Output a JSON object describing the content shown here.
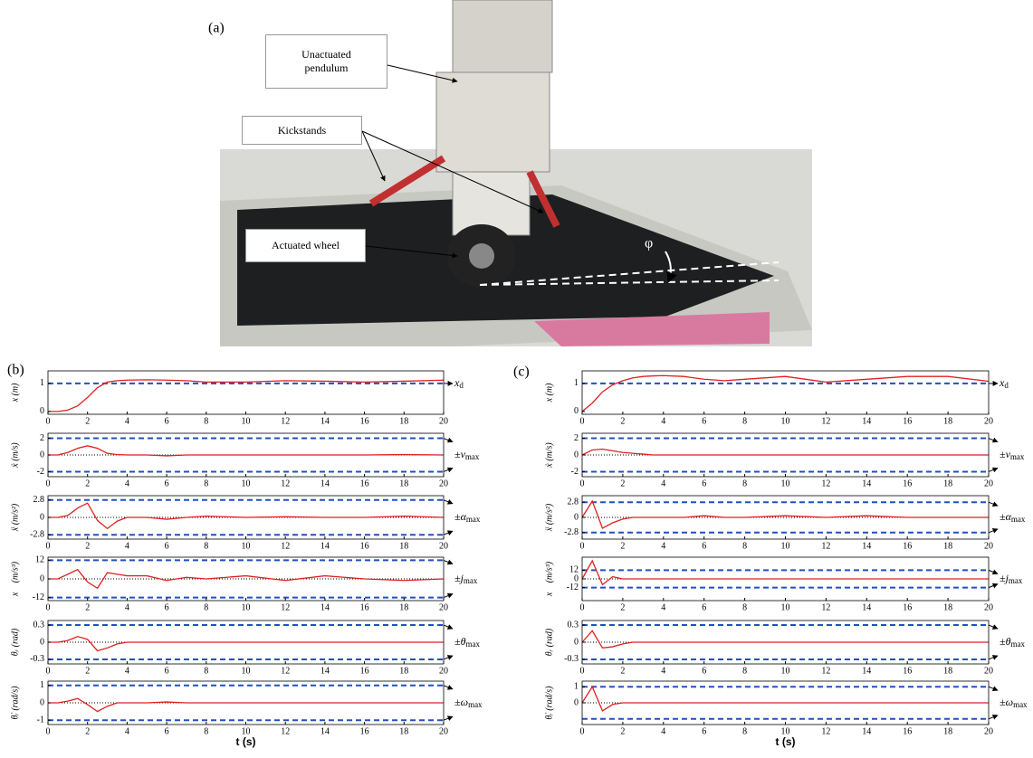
{
  "figure_labels": {
    "a": "(a)",
    "b": "(b)",
    "c": "(c)"
  },
  "photo": {
    "labels": [
      "Unactuated pendulum",
      "Kickstands",
      "Actuated wheel"
    ],
    "angle": "φ"
  },
  "chart_data": [
    {
      "type": "line",
      "ylabel": "x (m)",
      "annotation": "x",
      "annotation_sub": "d",
      "x": [
        0,
        0.5,
        1,
        1.5,
        2,
        2.5,
        3,
        3.5,
        4,
        5,
        6,
        7,
        8,
        10,
        12,
        14,
        16,
        18,
        20
      ],
      "series": [
        {
          "color": "#e02020",
          "values": [
            0,
            0,
            0.05,
            0.2,
            0.5,
            0.85,
            1.05,
            1.1,
            1.12,
            1.13,
            1.12,
            1.1,
            1.05,
            1.05,
            1.1,
            1.08,
            1.05,
            1.08,
            1.12
          ]
        }
      ],
      "bounds": [
        1
      ],
      "bound_color": "#2050c0",
      "zero_line": false,
      "xlim": [
        0,
        20
      ],
      "ylim": [
        -0.1,
        1.45
      ],
      "xticks": [
        0,
        2,
        4,
        6,
        8,
        10,
        12,
        14,
        16,
        18,
        20
      ],
      "yticks": [
        0,
        1
      ]
    },
    {
      "type": "line",
      "ylabel": "ẋ (m/s)",
      "annotation": "±v",
      "annotation_sub": "max",
      "x": [
        0,
        0.5,
        1,
        1.5,
        2,
        2.5,
        3,
        3.5,
        4,
        5,
        6,
        7,
        8,
        10,
        12,
        14,
        16,
        18,
        20
      ],
      "series": [
        {
          "color": "#e02020",
          "values": [
            0,
            0,
            0.3,
            0.8,
            1.1,
            0.8,
            0.2,
            0.05,
            0,
            0,
            -0.1,
            0,
            0,
            0,
            0,
            0,
            0,
            0.05,
            0
          ]
        }
      ],
      "bounds": [
        -2,
        2
      ],
      "bound_color": "#2050c0",
      "zero_line": true,
      "xlim": [
        0,
        20
      ],
      "ylim": [
        -2.6,
        2.6
      ],
      "xticks": [
        0,
        2,
        4,
        6,
        8,
        10,
        12,
        14,
        16,
        18,
        20
      ],
      "yticks": [
        -2,
        0,
        2
      ]
    },
    {
      "type": "line",
      "ylabel": "ẍ (m/s²)",
      "annotation": "±α",
      "annotation_sub": "max",
      "x": [
        0,
        0.5,
        1,
        1.5,
        2,
        2.5,
        3,
        3.5,
        4,
        5,
        6,
        7,
        8,
        10,
        12,
        14,
        16,
        18,
        20
      ],
      "series": [
        {
          "color": "#e02020",
          "values": [
            0,
            0,
            0.3,
            1.5,
            2.3,
            -0.5,
            -1.8,
            -0.6,
            0,
            0,
            -0.3,
            0,
            0.2,
            0,
            0.1,
            0,
            0,
            0.2,
            0
          ]
        }
      ],
      "bounds": [
        -2.8,
        2.8
      ],
      "bound_color": "#2050c0",
      "zero_line": true,
      "xlim": [
        0,
        20
      ],
      "ylim": [
        -3.5,
        3.5
      ],
      "xticks": [
        0,
        2,
        4,
        6,
        8,
        10,
        12,
        14,
        16,
        18,
        20
      ],
      "yticks": [
        -2.8,
        0,
        2.8
      ]
    },
    {
      "type": "line",
      "ylabel": "x⃛ (m/s³)",
      "annotation": "±j",
      "annotation_sub": "max",
      "x": [
        0,
        0.5,
        1,
        1.5,
        2,
        2.5,
        3,
        3.5,
        4,
        5,
        6,
        7,
        8,
        10,
        12,
        14,
        16,
        18,
        20
      ],
      "series": [
        {
          "color": "#e02020",
          "values": [
            0,
            0,
            3,
            6,
            -2,
            -6,
            4,
            3,
            2,
            2,
            -1,
            1,
            0,
            2,
            -1,
            2,
            0,
            -1,
            0
          ]
        }
      ],
      "bounds": [
        -12,
        12
      ],
      "bound_color": "#2050c0",
      "zero_line": true,
      "xlim": [
        0,
        20
      ],
      "ylim": [
        -14,
        14
      ],
      "xticks": [
        0,
        2,
        4,
        6,
        8,
        10,
        12,
        14,
        16,
        18,
        20
      ],
      "yticks": [
        -12,
        0,
        12
      ]
    },
    {
      "type": "line",
      "ylabel": "θᵣ (rad)",
      "annotation": "±θ",
      "annotation_sub": "max",
      "x": [
        0,
        0.5,
        1,
        1.5,
        2,
        2.5,
        3,
        3.5,
        4,
        5,
        6,
        7,
        8,
        10,
        12,
        14,
        16,
        18,
        20
      ],
      "series": [
        {
          "color": "#e02020",
          "values": [
            0,
            0,
            0.03,
            0.1,
            0.05,
            -0.15,
            -0.1,
            -0.03,
            0,
            0,
            0,
            0,
            0,
            0,
            0,
            0,
            0,
            0,
            0
          ]
        }
      ],
      "bounds": [
        -0.3,
        0.3
      ],
      "bound_color": "#2050c0",
      "zero_line": true,
      "xlim": [
        0,
        20
      ],
      "ylim": [
        -0.38,
        0.38
      ],
      "xticks": [
        0,
        2,
        4,
        6,
        8,
        10,
        12,
        14,
        16,
        18,
        20
      ],
      "yticks": [
        -0.3,
        0,
        0.3
      ]
    },
    {
      "type": "line",
      "ylabel": "θ̇ᵣ (rad/s)",
      "xlabel": "t (s)",
      "annotation": "±ω",
      "annotation_sub": "max",
      "x": [
        0,
        0.5,
        1,
        1.5,
        2,
        2.5,
        3,
        3.5,
        4,
        5,
        6,
        7,
        8,
        10,
        12,
        14,
        16,
        18,
        20
      ],
      "series": [
        {
          "color": "#e02020",
          "values": [
            0,
            0,
            0.1,
            0.25,
            -0.1,
            -0.5,
            -0.2,
            0,
            0,
            0,
            0.05,
            0,
            0,
            0,
            0,
            0,
            0,
            0,
            0
          ]
        }
      ],
      "bounds": [
        -1,
        1
      ],
      "bound_color": "#2050c0",
      "zero_line": true,
      "xlim": [
        0,
        20
      ],
      "ylim": [
        -1.25,
        1.25
      ],
      "xticks": [
        0,
        2,
        4,
        6,
        8,
        10,
        12,
        14,
        16,
        18,
        20
      ],
      "yticks": [
        -1,
        0,
        1
      ]
    },
    {
      "type": "line",
      "ylabel": "x (m)",
      "annotation": "x",
      "annotation_sub": "d",
      "x": [
        0,
        0.5,
        1,
        1.5,
        2,
        2.5,
        3,
        3.5,
        4,
        5,
        6,
        7,
        8,
        10,
        12,
        14,
        16,
        18,
        20
      ],
      "series": [
        {
          "color": "#e02020",
          "values": [
            0,
            0.3,
            0.7,
            0.95,
            1.1,
            1.2,
            1.25,
            1.27,
            1.28,
            1.25,
            1.15,
            1.1,
            1.15,
            1.25,
            1.05,
            1.15,
            1.25,
            1.25,
            1.08
          ]
        }
      ],
      "bounds": [
        1
      ],
      "bound_color": "#2050c0",
      "zero_line": false,
      "xlim": [
        0,
        20
      ],
      "ylim": [
        -0.1,
        1.45
      ],
      "xticks": [
        0,
        2,
        4,
        6,
        8,
        10,
        12,
        14,
        16,
        18,
        20
      ],
      "yticks": [
        0,
        1
      ]
    },
    {
      "type": "line",
      "ylabel": "ẋ (m/s)",
      "annotation": "±v",
      "annotation_sub": "max",
      "x": [
        0,
        0.5,
        1,
        1.5,
        2,
        2.5,
        3,
        3.5,
        4,
        5,
        6,
        7,
        8,
        10,
        12,
        14,
        16,
        18,
        20
      ],
      "series": [
        {
          "color": "#e02020",
          "values": [
            0,
            0.6,
            0.7,
            0.5,
            0.3,
            0.2,
            0.1,
            0,
            0,
            0,
            0,
            0,
            0,
            0,
            0,
            0,
            0,
            0,
            0
          ]
        }
      ],
      "bounds": [
        -2,
        2
      ],
      "bound_color": "#2050c0",
      "zero_line": true,
      "xlim": [
        0,
        20
      ],
      "ylim": [
        -2.6,
        2.6
      ],
      "xticks": [
        0,
        2,
        4,
        6,
        8,
        10,
        12,
        14,
        16,
        18,
        20
      ],
      "yticks": [
        -2,
        0,
        2
      ]
    },
    {
      "type": "line",
      "ylabel": "ẍ (m/s²)",
      "annotation": "±α",
      "annotation_sub": "max",
      "x": [
        0,
        0.5,
        1,
        1.5,
        2,
        2.5,
        3,
        3.5,
        4,
        5,
        6,
        7,
        8,
        10,
        12,
        14,
        16,
        18,
        20
      ],
      "series": [
        {
          "color": "#e02020",
          "values": [
            0,
            3,
            -2,
            -1,
            -0.3,
            0,
            0,
            0,
            0,
            0,
            0.3,
            0,
            0,
            0.3,
            0,
            0.3,
            0,
            0,
            0
          ]
        }
      ],
      "bounds": [
        -2.8,
        2.8
      ],
      "bound_color": "#2050c0",
      "zero_line": true,
      "xlim": [
        0,
        20
      ],
      "ylim": [
        -4,
        4
      ],
      "xticks": [
        0,
        2,
        4,
        6,
        8,
        10,
        12,
        14,
        16,
        18,
        20
      ],
      "yticks": [
        -2.8,
        0,
        2.8
      ]
    },
    {
      "type": "line",
      "ylabel": "x⃛ (m/s³)",
      "annotation": "±j",
      "annotation_sub": "max",
      "x": [
        0,
        0.5,
        1,
        1.5,
        2,
        2.5,
        3,
        3.5,
        4,
        5,
        6,
        7,
        8,
        10,
        12,
        14,
        16,
        18,
        20
      ],
      "series": [
        {
          "color": "#e02020",
          "values": [
            0,
            25,
            -8,
            3,
            0,
            0,
            0,
            0,
            0,
            0,
            0,
            0,
            0,
            0,
            0,
            0,
            0,
            0,
            0
          ]
        }
      ],
      "bounds": [
        -12,
        12
      ],
      "bound_color": "#2050c0",
      "zero_line": true,
      "xlim": [
        0,
        20
      ],
      "ylim": [
        -30,
        30
      ],
      "xticks": [
        0,
        2,
        4,
        6,
        8,
        10,
        12,
        14,
        16,
        18,
        20
      ],
      "yticks": [
        -12,
        0,
        12
      ]
    },
    {
      "type": "line",
      "ylabel": "θᵣ (rad)",
      "annotation": "±θ",
      "annotation_sub": "max",
      "x": [
        0,
        0.5,
        1,
        1.5,
        2,
        2.5,
        3,
        3.5,
        4,
        5,
        6,
        7,
        8,
        10,
        12,
        14,
        16,
        18,
        20
      ],
      "series": [
        {
          "color": "#e02020",
          "values": [
            0,
            0.2,
            -0.1,
            -0.08,
            -0.03,
            0,
            0,
            0,
            0,
            0,
            0,
            0,
            0,
            0,
            0,
            0,
            0,
            0,
            0
          ]
        }
      ],
      "bounds": [
        -0.3,
        0.3
      ],
      "bound_color": "#2050c0",
      "zero_line": true,
      "xlim": [
        0,
        20
      ],
      "ylim": [
        -0.38,
        0.38
      ],
      "xticks": [
        0,
        2,
        4,
        6,
        8,
        10,
        12,
        14,
        16,
        18,
        20
      ],
      "yticks": [
        -0.3,
        0,
        0.3
      ]
    },
    {
      "type": "line",
      "ylabel": "θ̇ᵣ (rad/s)",
      "xlabel": "t (s)",
      "annotation": "±ω",
      "annotation_sub": "max",
      "x": [
        0,
        0.5,
        1,
        1.5,
        2,
        2.5,
        3,
        3.5,
        4,
        5,
        6,
        7,
        8,
        10,
        12,
        14,
        16,
        18,
        20
      ],
      "series": [
        {
          "color": "#e02020",
          "values": [
            0,
            1,
            -0.5,
            -0.1,
            0,
            0,
            0,
            0,
            0,
            0,
            0,
            0,
            0,
            0,
            0,
            0,
            0,
            0,
            0
          ]
        }
      ],
      "bounds": [
        -1,
        1
      ],
      "bound_color": "#2050c0",
      "zero_line": true,
      "xlim": [
        0,
        20
      ],
      "ylim": [
        -1.35,
        1.35
      ],
      "xticks": [
        0,
        2,
        4,
        6,
        8,
        10,
        12,
        14,
        16,
        18,
        20
      ],
      "yticks": [
        0,
        1
      ]
    }
  ]
}
